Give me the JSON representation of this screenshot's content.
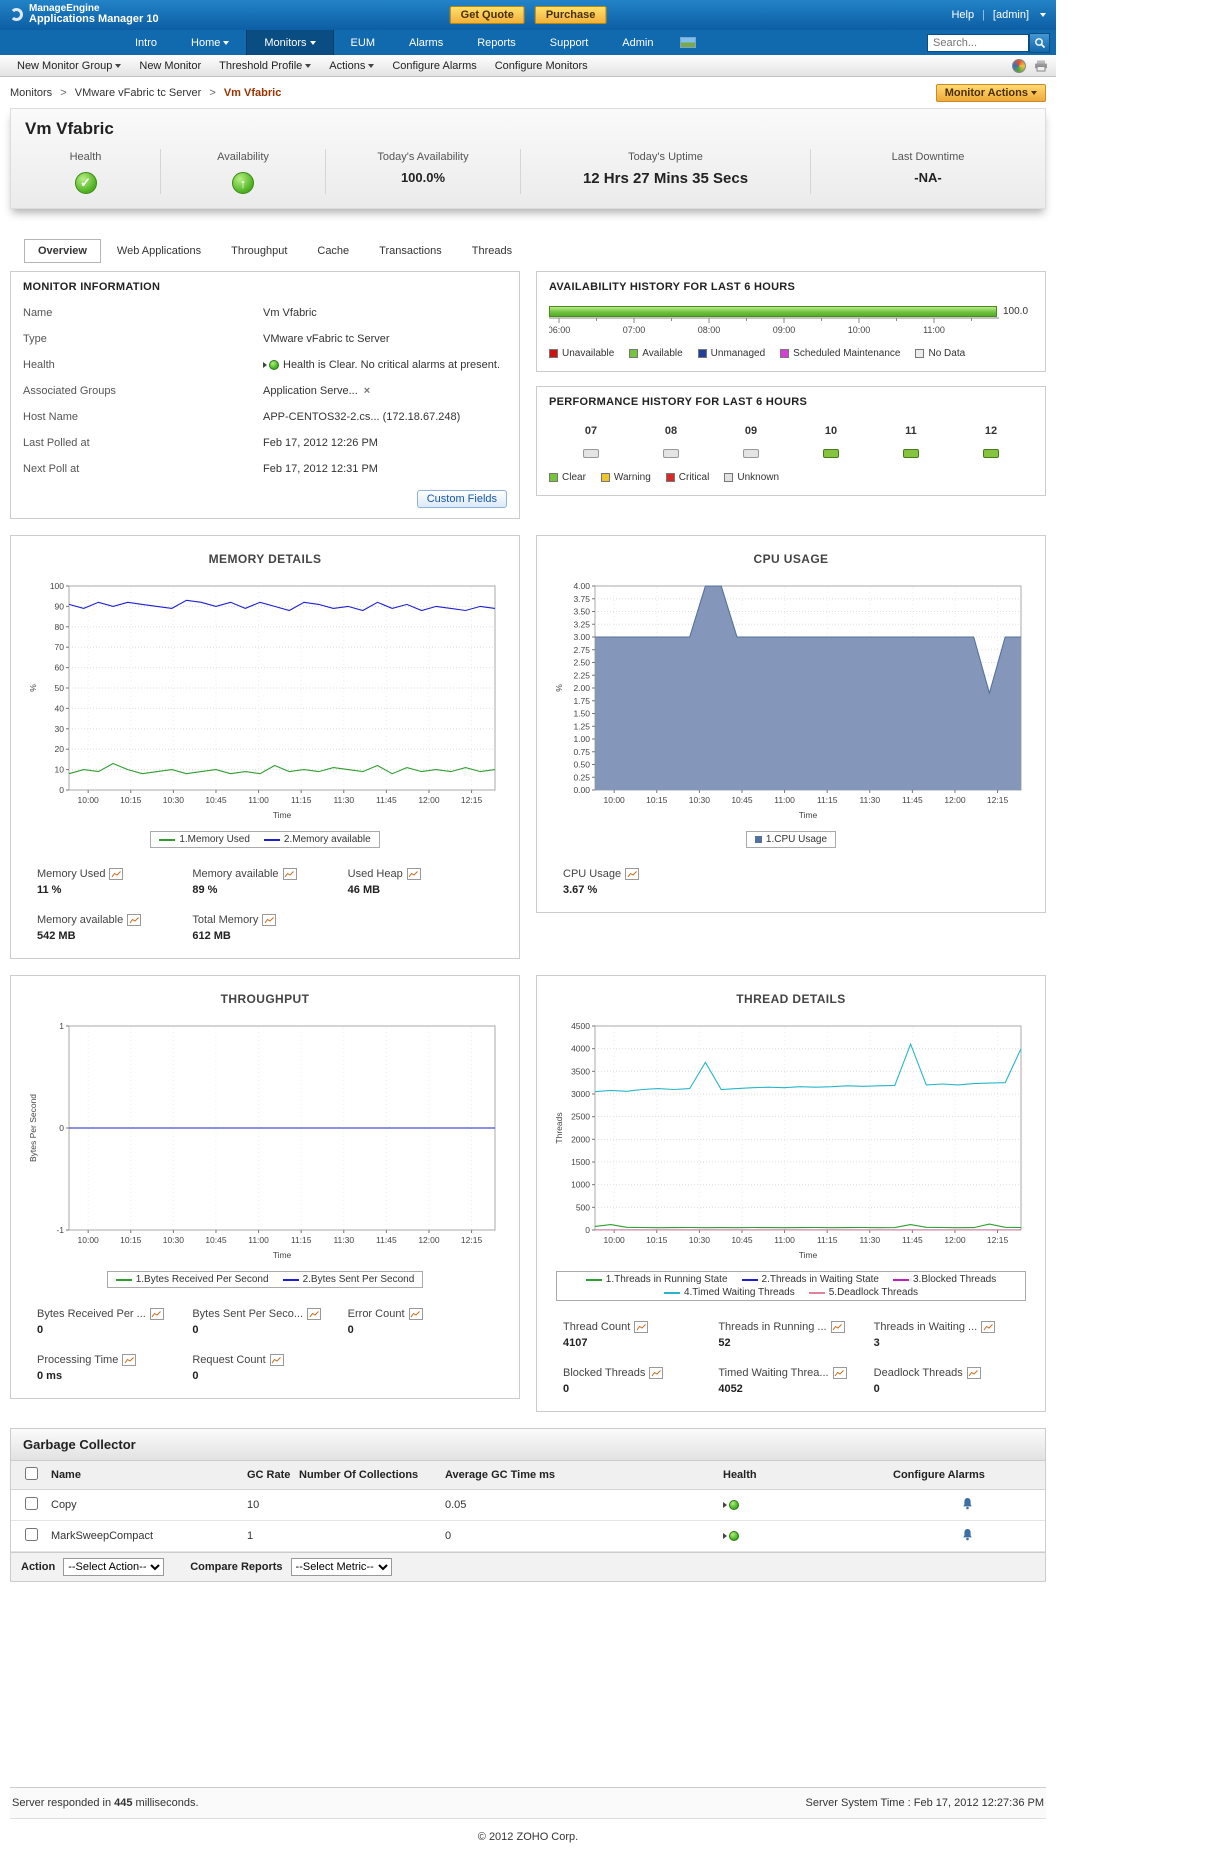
{
  "header": {
    "brand_line1": "ManageEngine",
    "brand_line2": "Applications Manager 10",
    "get_quote": "Get Quote",
    "purchase": "Purchase",
    "help": "Help",
    "user": "[admin]"
  },
  "nav": {
    "items": [
      {
        "label": "Intro",
        "arrow": false,
        "active": false
      },
      {
        "label": "Home",
        "arrow": true,
        "active": false
      },
      {
        "label": "Monitors",
        "arrow": true,
        "active": true
      },
      {
        "label": "EUM",
        "arrow": false,
        "active": false
      },
      {
        "label": "Alarms",
        "arrow": false,
        "active": false
      },
      {
        "label": "Reports",
        "arrow": false,
        "active": false
      },
      {
        "label": "Support",
        "arrow": false,
        "active": false
      },
      {
        "label": "Admin",
        "arrow": false,
        "active": false
      }
    ],
    "search_placeholder": "Search..."
  },
  "toolbar": {
    "items": [
      {
        "label": "New Monitor Group",
        "arrow": true
      },
      {
        "label": "New Monitor",
        "arrow": false
      },
      {
        "label": "Threshold Profile",
        "arrow": true
      },
      {
        "label": "Actions",
        "arrow": true
      },
      {
        "label": "Configure Alarms",
        "arrow": false
      },
      {
        "label": "Configure Monitors",
        "arrow": false
      }
    ]
  },
  "breadcrumb": {
    "items": [
      "Monitors",
      "VMware vFabric tc Server"
    ],
    "current": "Vm Vfabric",
    "monitor_actions": "Monitor Actions"
  },
  "status": {
    "title": "Vm Vfabric",
    "health_label": "Health",
    "availability_label": "Availability",
    "today_availability_label": "Today's Availability",
    "today_availability_value": "100.0%",
    "today_uptime_label": "Today's Uptime",
    "today_uptime_value": "12 Hrs 27 Mins 35 Secs",
    "last_downtime_label": "Last Downtime",
    "last_downtime_value": "-NA-"
  },
  "tabs": {
    "items": [
      {
        "label": "Overview",
        "active": true
      },
      {
        "label": "Web Applications",
        "active": false
      },
      {
        "label": "Throughput",
        "active": false
      },
      {
        "label": "Cache",
        "active": false
      },
      {
        "label": "Transactions",
        "active": false
      },
      {
        "label": "Threads",
        "active": false
      }
    ]
  },
  "monitor_info": {
    "title": "MONITOR INFORMATION",
    "rows": [
      {
        "label": "Name",
        "value": "Vm Vfabric"
      },
      {
        "label": "Type",
        "value": "VMware vFabric tc Server"
      },
      {
        "label": "Health",
        "value": "Health is Clear. No critical alarms at present.",
        "health_icon": true
      },
      {
        "label": "Associated Groups",
        "value": "Application Serve...",
        "removable": true
      },
      {
        "label": "Host Name",
        "value": "APP-CENTOS32-2.cs... (172.18.67.248)"
      },
      {
        "label": "Last Polled at",
        "value": "Feb 17, 2012 12:26 PM"
      },
      {
        "label": "Next Poll at",
        "value": "Feb 17, 2012 12:31 PM"
      }
    ],
    "custom_fields_button": "Custom Fields"
  },
  "availability_history": {
    "title": "AVAILABILITY HISTORY FOR LAST 6 HOURS",
    "bar_value": "100.0",
    "bar_color": "#76c33e",
    "time_ticks": [
      "06:00",
      "07:00",
      "08:00",
      "09:00",
      "10:00",
      "11:00"
    ],
    "legend": [
      {
        "label": "Unavailable",
        "color": "#cc1111"
      },
      {
        "label": "Available",
        "color": "#76c33e"
      },
      {
        "label": "Unmanaged",
        "color": "#223f9b"
      },
      {
        "label": "Scheduled Maintenance",
        "color": "#d63fd6"
      },
      {
        "label": "No Data",
        "color": "#ececec"
      }
    ]
  },
  "performance_history": {
    "title": "PERFORMANCE HISTORY FOR LAST 6 HOURS",
    "hours": [
      {
        "label": "07",
        "state": "nodata"
      },
      {
        "label": "08",
        "state": "nodata"
      },
      {
        "label": "09",
        "state": "nodata"
      },
      {
        "label": "10",
        "state": "clear"
      },
      {
        "label": "11",
        "state": "clear"
      },
      {
        "label": "12",
        "state": "clear"
      }
    ],
    "legend": [
      {
        "label": "Clear",
        "color": "#76c33e"
      },
      {
        "label": "Warning",
        "color": "#ecc62a"
      },
      {
        "label": "Critical",
        "color": "#d42a2a"
      },
      {
        "label": "Unknown",
        "color": "#e2e2e2"
      }
    ]
  },
  "chart_data": [
    {
      "type": "line",
      "title": "MEMORY DETAILS",
      "xlabel": "Time",
      "ylabel": "%",
      "ylim": [
        0,
        100
      ],
      "ystep": 10,
      "ydecimals": 0,
      "grid": true,
      "legend_position": "bottom",
      "xticks": [
        "10:00",
        "10:15",
        "10:30",
        "10:45",
        "11:00",
        "11:15",
        "11:30",
        "11:45",
        "12:00",
        "12:15"
      ],
      "series": [
        {
          "name": "1.Memory Used",
          "color": "#2e9e2e",
          "values": [
            8,
            10,
            9,
            13,
            10,
            8,
            9,
            10,
            8,
            9,
            10,
            8,
            9,
            8,
            12,
            9,
            10,
            9,
            11,
            10,
            9,
            12,
            8,
            11,
            9,
            10,
            9,
            11,
            9,
            10
          ]
        },
        {
          "name": "2.Memory available",
          "color": "#1f1fd0",
          "values": [
            91,
            89,
            92,
            90,
            92,
            91,
            90,
            89,
            93,
            92,
            90,
            92,
            89,
            92,
            90,
            88,
            92,
            91,
            89,
            90,
            88,
            92,
            89,
            91,
            88,
            90,
            89,
            88,
            90,
            89
          ]
        }
      ]
    },
    {
      "type": "area",
      "title": "CPU USAGE",
      "xlabel": "Time",
      "ylabel": "%",
      "ylim": [
        0,
        4
      ],
      "ystep": 0.25,
      "ydecimals": 2,
      "grid": true,
      "swatch": "square",
      "legend_position": "bottom",
      "xticks": [
        "10:00",
        "10:15",
        "10:30",
        "10:45",
        "11:00",
        "11:15",
        "11:30",
        "11:45",
        "12:00",
        "12:15"
      ],
      "series": [
        {
          "name": "1.CPU Usage",
          "color": "#54719f",
          "fill": "#8497ba",
          "values": [
            3,
            3,
            3,
            3,
            3,
            3,
            3,
            4,
            4,
            3,
            3,
            3,
            3,
            3,
            3,
            3,
            3,
            3,
            3,
            3,
            3,
            3,
            3,
            3,
            3,
            1.9,
            3,
            3
          ]
        }
      ]
    },
    {
      "type": "line",
      "title": "THROUGHPUT",
      "xlabel": "Time",
      "ylabel": "Bytes Per Second",
      "ylim": [
        -1,
        1
      ],
      "ystep": 1,
      "ydecimals": 0,
      "grid": true,
      "legend_position": "bottom",
      "xticks": [
        "10:00",
        "10:15",
        "10:30",
        "10:45",
        "11:00",
        "11:15",
        "11:30",
        "11:45",
        "12:00",
        "12:15"
      ],
      "series": [
        {
          "name": "1.Bytes Received Per Second",
          "color": "#2e9e2e",
          "values": [
            0,
            0,
            0,
            0,
            0,
            0,
            0,
            0,
            0,
            0,
            0,
            0,
            0,
            0,
            0,
            0,
            0,
            0,
            0,
            0,
            0,
            0,
            0,
            0,
            0,
            0,
            0,
            0
          ]
        },
        {
          "name": "2.Bytes Sent Per Second",
          "color": "#1f1fd0",
          "values": [
            0,
            0,
            0,
            0,
            0,
            0,
            0,
            0,
            0,
            0,
            0,
            0,
            0,
            0,
            0,
            0,
            0,
            0,
            0,
            0,
            0,
            0,
            0,
            0,
            0,
            0,
            0,
            0
          ]
        }
      ]
    },
    {
      "type": "line",
      "title": "THREAD DETAILS",
      "xlabel": "Time",
      "ylabel": "Threads",
      "ylim": [
        0,
        4500
      ],
      "ystep": 500,
      "ydecimals": 0,
      "grid": true,
      "legend_position": "bottom",
      "xticks": [
        "10:00",
        "10:15",
        "10:30",
        "10:45",
        "11:00",
        "11:15",
        "11:30",
        "11:45",
        "12:00",
        "12:15"
      ],
      "series": [
        {
          "name": "1.Threads in Running State",
          "color": "#2e9e2e",
          "values": [
            80,
            120,
            60,
            55,
            50,
            52,
            55,
            50,
            52,
            50,
            55,
            52,
            50,
            52,
            55,
            50,
            52,
            55,
            50,
            52,
            120,
            60,
            55,
            50,
            52,
            130,
            60,
            55
          ]
        },
        {
          "name": "2.Threads in Waiting State",
          "color": "#1f1fd0",
          "values": [
            3,
            3,
            3,
            3,
            3,
            3,
            3,
            3,
            3,
            3,
            3,
            3,
            3,
            3,
            3,
            3,
            3,
            3,
            3,
            3,
            3,
            3,
            3,
            3,
            3,
            3,
            3,
            3
          ]
        },
        {
          "name": "3.Blocked Threads",
          "color": "#c01fc0",
          "values": [
            0,
            0,
            0,
            0,
            0,
            0,
            0,
            0,
            0,
            0,
            0,
            0,
            0,
            0,
            0,
            0,
            0,
            0,
            0,
            0,
            0,
            0,
            0,
            0,
            0,
            0,
            0,
            0
          ]
        },
        {
          "name": "4.Timed Waiting Threads",
          "color": "#27b6c9",
          "values": [
            3050,
            3080,
            3060,
            3100,
            3120,
            3100,
            3120,
            3700,
            3100,
            3120,
            3140,
            3150,
            3140,
            3160,
            3150,
            3160,
            3180,
            3170,
            3180,
            3190,
            4100,
            3200,
            3220,
            3200,
            3230,
            3240,
            3250,
            4000
          ]
        },
        {
          "name": "5.Deadlock Threads",
          "color": "#e0829a",
          "values": [
            0,
            0,
            0,
            0,
            0,
            0,
            0,
            0,
            0,
            0,
            0,
            0,
            0,
            0,
            0,
            0,
            0,
            0,
            0,
            0,
            0,
            0,
            0,
            0,
            0,
            0,
            0,
            0
          ]
        }
      ]
    }
  ],
  "memory_metrics": [
    {
      "label": "Memory Used",
      "value": "11 %"
    },
    {
      "label": "Memory available",
      "value": "89 %"
    },
    {
      "label": "Used Heap",
      "value": "46 MB"
    },
    {
      "label": "Memory available",
      "value": "542 MB"
    },
    {
      "label": "Total Memory",
      "value": "612 MB"
    }
  ],
  "cpu_metrics": [
    {
      "label": "CPU Usage",
      "value": "3.67 %"
    }
  ],
  "throughput_metrics": [
    {
      "label": "Bytes Received Per ...",
      "value": "0"
    },
    {
      "label": "Bytes Sent Per Seco...",
      "value": "0"
    },
    {
      "label": "Error Count",
      "value": "0"
    },
    {
      "label": "Processing Time",
      "value": "0 ms"
    },
    {
      "label": "Request Count",
      "value": "0"
    }
  ],
  "thread_metrics": [
    {
      "label": "Thread Count",
      "value": "4107"
    },
    {
      "label": "Threads in Running ...",
      "value": "52"
    },
    {
      "label": "Threads in Waiting ...",
      "value": "3"
    },
    {
      "label": "Blocked Threads",
      "value": "0"
    },
    {
      "label": "Timed Waiting Threa...",
      "value": "4052"
    },
    {
      "label": "Deadlock Threads",
      "value": "0"
    }
  ],
  "garbage_collector": {
    "title": "Garbage Collector",
    "columns": [
      "Name",
      "GC Rate",
      "Number Of Collections",
      "Average GC Time  ms",
      "Health",
      "Configure Alarms"
    ],
    "rows": [
      {
        "name": "Copy",
        "gc_rate": "10",
        "collections": "",
        "avg_gc_time": "0.05"
      },
      {
        "name": "MarkSweepCompact",
        "gc_rate": "1",
        "collections": "",
        "avg_gc_time": "0"
      }
    ]
  },
  "action_bar": {
    "action_label": "Action",
    "action_option": "--Select Action--",
    "compare_label": "Compare Reports",
    "compare_option": "--Select Metric--"
  },
  "footer": {
    "response_prefix": "Server responded in",
    "response_ms": "445",
    "response_suffix": "milliseconds.",
    "server_time": "Server System Time : Feb 17, 2012 12:27:36 PM",
    "copyright": "© 2012 ZOHO Corp."
  }
}
